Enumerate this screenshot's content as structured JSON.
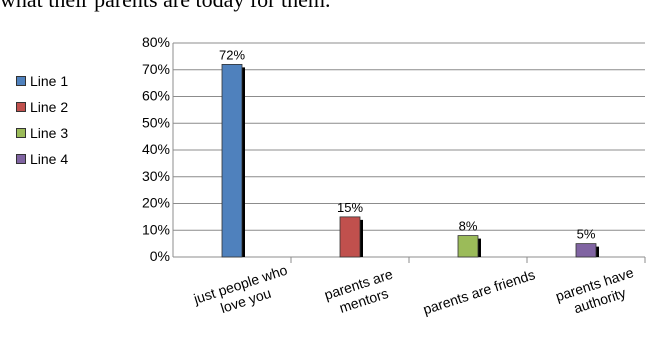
{
  "page": {
    "caption_fragment": "what their parents are today for them."
  },
  "chart_data": {
    "type": "bar",
    "categories": [
      "just people who love you",
      "parents are mentors",
      "parents are friends",
      "parents have authority"
    ],
    "category_label_lines": [
      [
        "just people who",
        "love you"
      ],
      [
        "parents are",
        "mentors"
      ],
      [
        "parents are friends"
      ],
      [
        "parents have",
        "authority"
      ]
    ],
    "values": [
      72,
      15,
      8,
      5
    ],
    "data_labels": [
      "72%",
      "15%",
      "8%",
      "5%"
    ],
    "ylim": [
      0,
      80
    ],
    "y_ticks": [
      0,
      10,
      20,
      30,
      40,
      50,
      60,
      70,
      80
    ],
    "y_tick_labels": [
      "0%",
      "10%",
      "20%",
      "30%",
      "40%",
      "50%",
      "60%",
      "70%",
      "80%"
    ],
    "gridlines": true,
    "legend_position": "left",
    "legend": [
      {
        "label": "Line 1",
        "color": "#4f81bd"
      },
      {
        "label": "Line 2",
        "color": "#c0504d"
      },
      {
        "label": "Line 3",
        "color": "#9bbb59"
      },
      {
        "label": "Line 4",
        "color": "#8064a2"
      }
    ],
    "bar_colors": [
      "#4f81bd",
      "#c0504d",
      "#9bbb59",
      "#8064a2"
    ],
    "title": "",
    "xlabel": "",
    "ylabel": ""
  }
}
